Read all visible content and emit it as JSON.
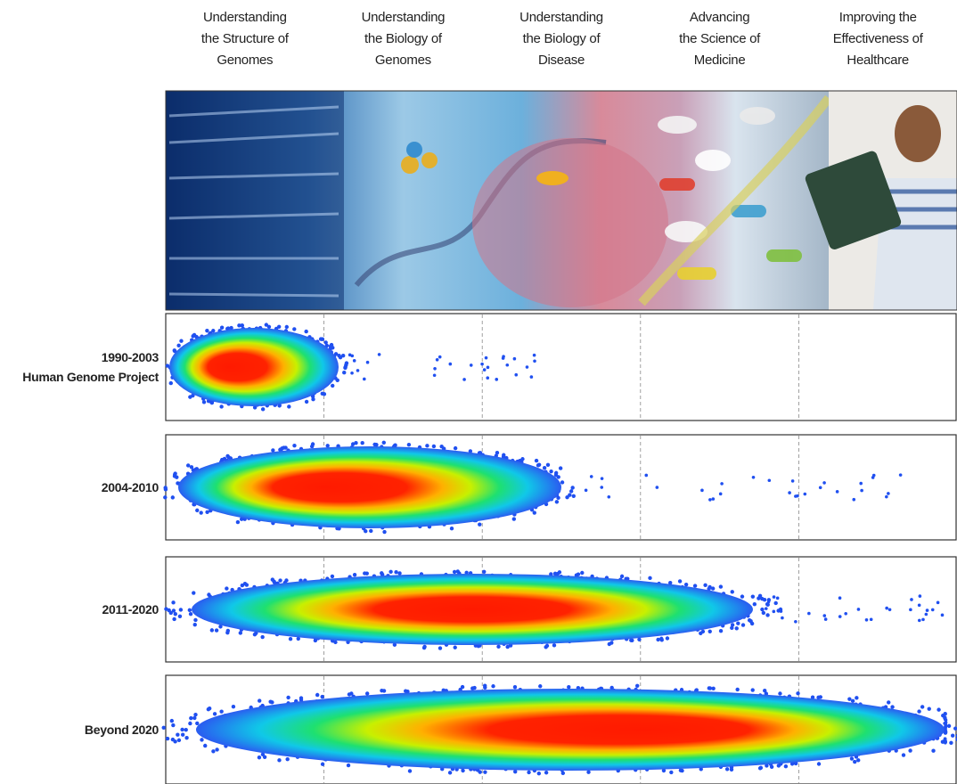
{
  "columns": [
    {
      "lines": [
        "Understanding",
        "the Structure of",
        "Genomes"
      ]
    },
    {
      "lines": [
        "Understanding",
        "the Biology of",
        "Genomes"
      ]
    },
    {
      "lines": [
        "Understanding",
        "the Biology of",
        "Disease"
      ]
    },
    {
      "lines": [
        "Advancing",
        "the Science of",
        "Medicine"
      ]
    },
    {
      "lines": [
        "Improving the",
        "Effectiveness of",
        "Healthcare"
      ]
    }
  ],
  "rows": [
    {
      "lines": [
        "1990-2003",
        "Human Genome Project"
      ]
    },
    {
      "lines": [
        "2004-2010"
      ]
    },
    {
      "lines": [
        "2011-2020"
      ]
    },
    {
      "lines": [
        "Beyond 2020"
      ]
    }
  ]
}
